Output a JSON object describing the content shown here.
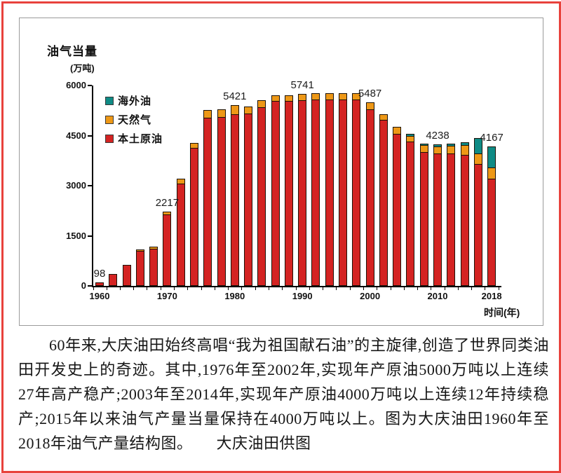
{
  "figure": {
    "title": "油气当量",
    "unit": "(万吨)",
    "x_axis_title": "时间(年)"
  },
  "legend": [
    {
      "label": "海外油",
      "color": "#0f8b85"
    },
    {
      "label": "天然气",
      "color": "#ee9816"
    },
    {
      "label": "本土原油",
      "color": "#d42322"
    }
  ],
  "chart_data": {
    "type": "bar",
    "stacked": true,
    "title": "油气当量",
    "unit": "(万吨)",
    "xlabel": "时间(年)",
    "ylabel": "油气当量(万吨)",
    "ylim": [
      0,
      6000
    ],
    "yticks": [
      0,
      1500,
      3000,
      4500,
      6000
    ],
    "grid": false,
    "legend_position": "top-left-inside",
    "x": [
      1960,
      1962,
      1964,
      1966,
      1968,
      1970,
      1972,
      1974,
      1976,
      1978,
      1980,
      1982,
      1984,
      1986,
      1988,
      1990,
      1992,
      1994,
      1996,
      1998,
      2000,
      2002,
      2004,
      2006,
      2008,
      2010,
      2012,
      2014,
      2016,
      2018
    ],
    "xtick_years": [
      1960,
      1970,
      1980,
      1990,
      2000,
      2010,
      2018
    ],
    "series": [
      {
        "name": "本土原油",
        "color": "#d42322",
        "values": [
          98,
          360,
          630,
          1040,
          1110,
          2130,
          3060,
          4130,
          5030,
          5050,
          5150,
          5170,
          5340,
          5540,
          5540,
          5560,
          5570,
          5590,
          5590,
          5570,
          5280,
          4980,
          4560,
          4320,
          4000,
          3960,
          3960,
          3920,
          3650,
          3200
        ]
      },
      {
        "name": "天然气",
        "color": "#ee9816",
        "values": [
          0,
          0,
          0,
          25,
          70,
          87,
          150,
          150,
          230,
          230,
          271,
          210,
          210,
          170,
          175,
          181,
          180,
          190,
          195,
          180,
          207,
          170,
          210,
          170,
          200,
          210,
          230,
          290,
          315,
          330
        ]
      },
      {
        "name": "海外油",
        "color": "#0f8b85",
        "values": [
          0,
          0,
          0,
          0,
          0,
          0,
          0,
          0,
          0,
          0,
          0,
          0,
          0,
          0,
          0,
          0,
          0,
          0,
          0,
          0,
          0,
          0,
          0,
          70,
          45,
          68,
          70,
          80,
          455,
          637
        ]
      }
    ],
    "point_labels": [
      {
        "year": 1960,
        "text": "98"
      },
      {
        "year": 1970,
        "text": "2217"
      },
      {
        "year": 1980,
        "text": "5421"
      },
      {
        "year": 1990,
        "text": "5741"
      },
      {
        "year": 2000,
        "text": "5487"
      },
      {
        "year": 2010,
        "text": "4238"
      },
      {
        "year": 2018,
        "text": "4167"
      }
    ]
  },
  "caption": {
    "text": "60年来,大庆油田始终高唱“我为祖国献石油”的主旋律,创造了世界同类油田开发史上的奇迹。其中,1976年至2002年,实现年产原油5000万吨以上连续27年高产稳产;2003年至2014年,实现年产原油4000万吨以上连续12年持续稳产;2015年以来油气产量当量保持在4000万吨以上。图为大庆油田1960年至2018年油气产量结构图。　　大庆油田供图"
  }
}
